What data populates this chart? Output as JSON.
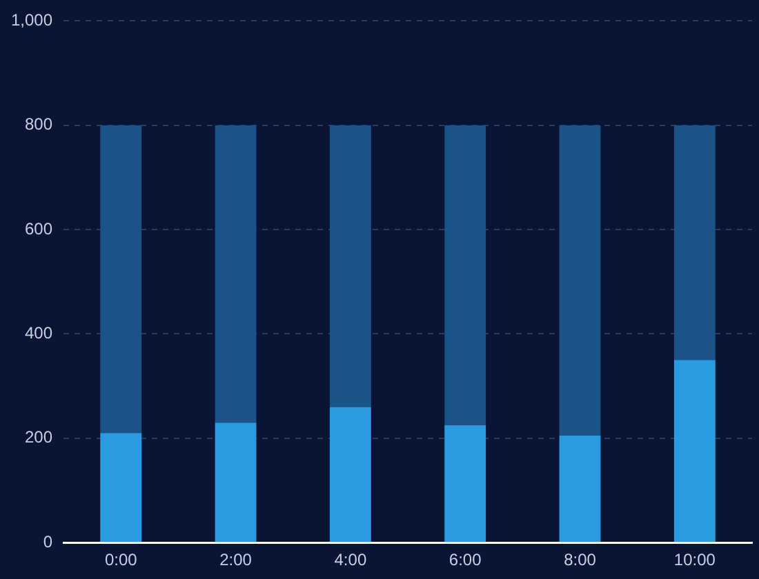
{
  "chart_data": {
    "type": "bar",
    "categories": [
      "0:00",
      "2:00",
      "4:00",
      "6:00",
      "8:00",
      "10:00"
    ],
    "series": [
      {
        "color": "#2a9be0",
        "values": [
          210,
          230,
          260,
          225,
          205,
          350
        ]
      },
      {
        "color": "#1b5288",
        "values": [
          590,
          570,
          540,
          575,
          595,
          450
        ]
      }
    ],
    "stacked": true,
    "ylim": [
      0,
      1000
    ],
    "yticks": [
      0,
      200,
      400,
      600,
      800,
      {
        "value": 1000,
        "label": "1,000"
      }
    ],
    "grid": "y"
  }
}
